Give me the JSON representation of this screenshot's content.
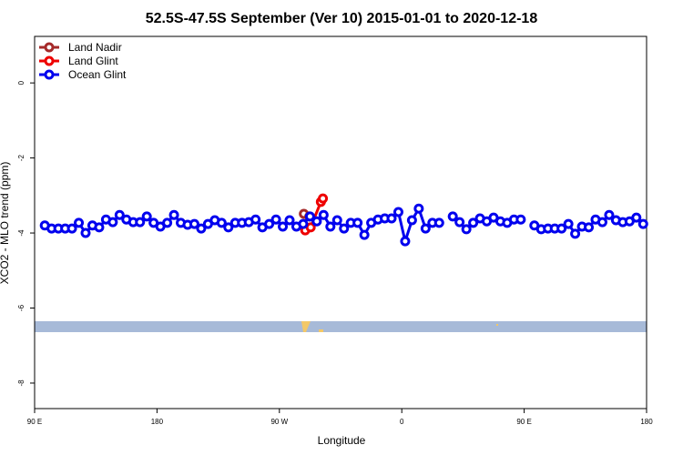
{
  "chart_data": {
    "type": "line",
    "title": "52.5S-47.5S September (Ver 10)   2015-01-01 to 2020-12-18",
    "x_label": "Longitude",
    "y_label": "XCO2 - MLO trend (ppm)",
    "xlim": [
      90,
      540
    ],
    "ylim": [
      -8.68,
      1.24
    ],
    "xticks": [
      {
        "value": 90,
        "label": "90 E"
      },
      180,
      {
        "value": 270,
        "label": "90 W"
      },
      {
        "value": 360,
        "label": "0"
      },
      {
        "value": 450,
        "label": "90 E"
      },
      {
        "value": 540,
        "label": "180"
      }
    ],
    "yticks": [
      0,
      -2,
      -4,
      -6,
      -8
    ],
    "legend": "top-left",
    "series": [
      {
        "name": "Land Nadir",
        "color": "#a52a2a",
        "x": [
          288,
          292
        ],
        "values": [
          -3.49,
          -3.56
        ]
      },
      {
        "name": "Land Glint",
        "color": "#ee0000",
        "x": [
          289,
          293,
          300.5,
          302
        ],
        "values": [
          -3.93,
          -3.85,
          -3.17,
          -3.08
        ]
      },
      {
        "name": "Ocean Glint",
        "color": "#0000ee",
        "x": [
          97.5,
          102.5,
          107.5,
          112.5,
          117.5,
          122.5,
          127.5,
          132.5,
          137.5,
          142.5,
          147.5,
          152.5,
          157.5,
          162.5,
          167.5,
          172.5,
          177.5,
          182.5,
          187.5,
          192.5,
          197.5,
          202.5,
          207.5,
          212.5,
          217.5,
          222.5,
          227.5,
          232.5,
          237.5,
          242.5,
          247.5,
          252.5,
          257.5,
          262.5,
          267.5,
          272.5,
          277.5,
          282.5,
          287.5,
          292.5,
          297.5,
          302.5,
          307.5,
          312.5,
          317.5,
          322.5,
          327.5,
          332.5,
          337.5,
          342.5,
          347.5,
          352.5,
          357.5,
          362.5,
          367.5,
          372.5,
          377.5,
          382.5,
          387.5,
          392.5,
          397.5,
          402.5,
          407.5,
          412.5,
          417.5,
          422.5,
          427.5,
          432.5,
          437.5,
          442.5,
          447.5,
          452.5,
          457.5,
          462.5,
          467.5,
          472.5,
          477.5,
          482.5,
          487.5,
          492.5,
          497.5,
          502.5,
          507.5,
          512.5,
          517.5,
          522.5,
          527.5,
          532.5,
          537.5
        ],
        "values": [
          -3.8,
          -3.88,
          -3.88,
          -3.88,
          -3.88,
          -3.73,
          -4.0,
          -3.8,
          -3.85,
          -3.64,
          -3.71,
          -3.52,
          -3.64,
          -3.71,
          -3.71,
          -3.56,
          -3.73,
          -3.83,
          -3.73,
          -3.52,
          -3.73,
          -3.78,
          -3.76,
          -3.88,
          -3.76,
          -3.66,
          -3.73,
          -3.85,
          -3.73,
          -3.73,
          -3.71,
          -3.64,
          -3.85,
          -3.76,
          -3.64,
          -3.83,
          -3.66,
          -3.83,
          -3.76,
          -3.56,
          -3.69,
          -3.52,
          -3.83,
          -3.66,
          -3.88,
          -3.73,
          -3.73,
          -4.05,
          -3.73,
          -3.64,
          -3.61,
          -3.61,
          -3.44,
          -4.22,
          -3.66,
          -3.35,
          -3.88,
          -3.73,
          -3.73,
          null,
          -3.56,
          -3.71,
          -3.9,
          -3.73,
          -3.61,
          -3.69,
          -3.59,
          -3.69,
          -3.73,
          -3.64,
          -3.64,
          null,
          -3.8,
          -3.9,
          -3.88,
          -3.88,
          -3.88,
          -3.76,
          -4.02,
          -3.83,
          -3.85,
          -3.64,
          -3.71,
          -3.52,
          -3.66,
          -3.71,
          -3.69,
          -3.59,
          -3.76
        ]
      }
    ]
  }
}
